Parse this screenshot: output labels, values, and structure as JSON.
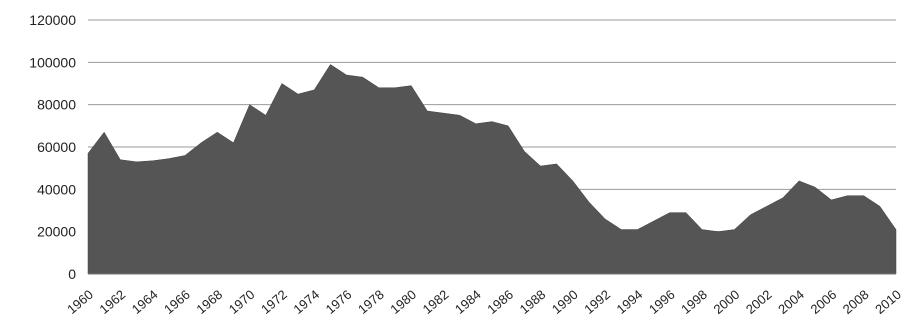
{
  "chart_data": {
    "type": "area",
    "title": "",
    "xlabel": "",
    "ylabel": "",
    "ylim": [
      0,
      120000
    ],
    "y_ticks": [
      0,
      20000,
      40000,
      60000,
      80000,
      100000,
      120000
    ],
    "y_tick_labels": [
      "0",
      "20000",
      "40000",
      "60000",
      "80000",
      "100000",
      "120000"
    ],
    "x_tick_labels": [
      "1960",
      "1962",
      "1964",
      "1966",
      "1968",
      "1970",
      "1972",
      "1974",
      "1976",
      "1978",
      "1980",
      "1982",
      "1984",
      "1986",
      "1988",
      "1990",
      "1992",
      "1994",
      "1996",
      "1998",
      "2000",
      "2002",
      "2004",
      "2006",
      "2008",
      "2010"
    ],
    "grid": true,
    "legend": "none",
    "colors": {
      "area": "#555555",
      "grid": "#9a9a9a"
    },
    "series": [
      {
        "x": [
          1960,
          1961,
          1962,
          1963,
          1964,
          1965,
          1966,
          1967,
          1968,
          1969,
          1970,
          1971,
          1972,
          1973,
          1974,
          1975,
          1976,
          1977,
          1978,
          1979,
          1980,
          1981,
          1982,
          1983,
          1984,
          1985,
          1986,
          1987,
          1988,
          1989,
          1990,
          1991,
          1992,
          1993,
          1994,
          1995,
          1996,
          1997,
          1998,
          1999,
          2000,
          2001,
          2002,
          2003,
          2004,
          2005,
          2006,
          2007,
          2008,
          2009,
          2010
        ],
        "values": [
          57000,
          67000,
          54000,
          53000,
          53500,
          54500,
          56000,
          62000,
          67000,
          62000,
          80000,
          75000,
          90000,
          85000,
          87000,
          99000,
          94000,
          93000,
          88000,
          88000,
          89000,
          77000,
          76000,
          75000,
          71000,
          72000,
          70000,
          58000,
          51000,
          52000,
          44000,
          34000,
          26000,
          21000,
          21000,
          25000,
          29000,
          29000,
          21000,
          20000,
          21000,
          28000,
          32000,
          36000,
          44000,
          41000,
          35000,
          37000,
          37000,
          32000,
          21000
        ]
      }
    ]
  }
}
